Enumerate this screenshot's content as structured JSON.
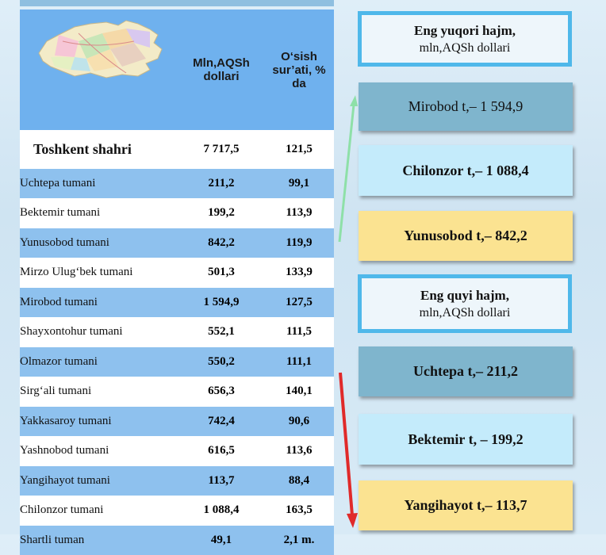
{
  "table": {
    "header": {
      "col1": "Mln,AQSh dollari",
      "col2": "O‘sish sur’ati, % da"
    },
    "city": {
      "name": "Toshkent shahri",
      "value": "7 717,5",
      "growth": "121,5"
    },
    "rows": [
      {
        "name": "Uchtepa tumani",
        "value": "211,2",
        "growth": "99,1",
        "color": "blue"
      },
      {
        "name": "Bektemir tumani",
        "value": "199,2",
        "growth": "113,9",
        "color": "white"
      },
      {
        "name": "Yunusobod tumani",
        "value": "842,2",
        "growth": "119,9",
        "color": "blue"
      },
      {
        "name": "Mirzo Ulug‘bek tumani",
        "value": "501,3",
        "growth": "133,9",
        "color": "white"
      },
      {
        "name": "Mirobod tumani",
        "value": "1 594,9",
        "growth": "127,5",
        "color": "blue"
      },
      {
        "name": "Shayxontohur tumani",
        "value": "552,1",
        "growth": "111,5",
        "color": "white"
      },
      {
        "name": "Olmazor tumani",
        "value": "550,2",
        "growth": "111,1",
        "color": "blue"
      },
      {
        "name": "Sirg‘ali tumani",
        "value": "656,3",
        "growth": "140,1",
        "color": "white"
      },
      {
        "name": "Yakkasaroy tumani",
        "value": "742,4",
        "growth": "90,6",
        "color": "blue"
      },
      {
        "name": "Yashnobod tumani",
        "value": "616,5",
        "growth": "113,6",
        "color": "white"
      },
      {
        "name": "Yangihayot tumani",
        "value": "113,7",
        "growth": "88,4",
        "color": "blue"
      },
      {
        "name": "Chilonzor tumani",
        "value": "1 088,4",
        "growth": "163,5",
        "color": "white"
      },
      {
        "name": "Shartli tuman",
        "value": "49,1",
        "growth": "2,1 m.",
        "color": "blue"
      }
    ]
  },
  "highest": {
    "title": "Eng yuqori hajm,",
    "subtitle": "mln,AQSh dollari",
    "items": [
      "Mirobod t,– 1 594,9",
      "Chilonzor t,– 1 088,4",
      "Yunusobod t,– 842,2"
    ]
  },
  "lowest": {
    "title": "Eng quyi hajm,",
    "subtitle": "mln,AQSh dollari",
    "items": [
      "Uchtepa t,– 211,2",
      "Bektemir t, –  199,2",
      "Yangihayot t,– 113,7"
    ]
  },
  "colors": {
    "header_blue": "#6fb1ee",
    "row_blue": "#8ec1ee",
    "box_outline": "#4fb8ea",
    "steel": "#7fb5cd",
    "light": "#c4ebfb",
    "yellow": "#fbe391",
    "arrow_up": "#8ee0a8",
    "arrow_down": "#e02a2a"
  }
}
